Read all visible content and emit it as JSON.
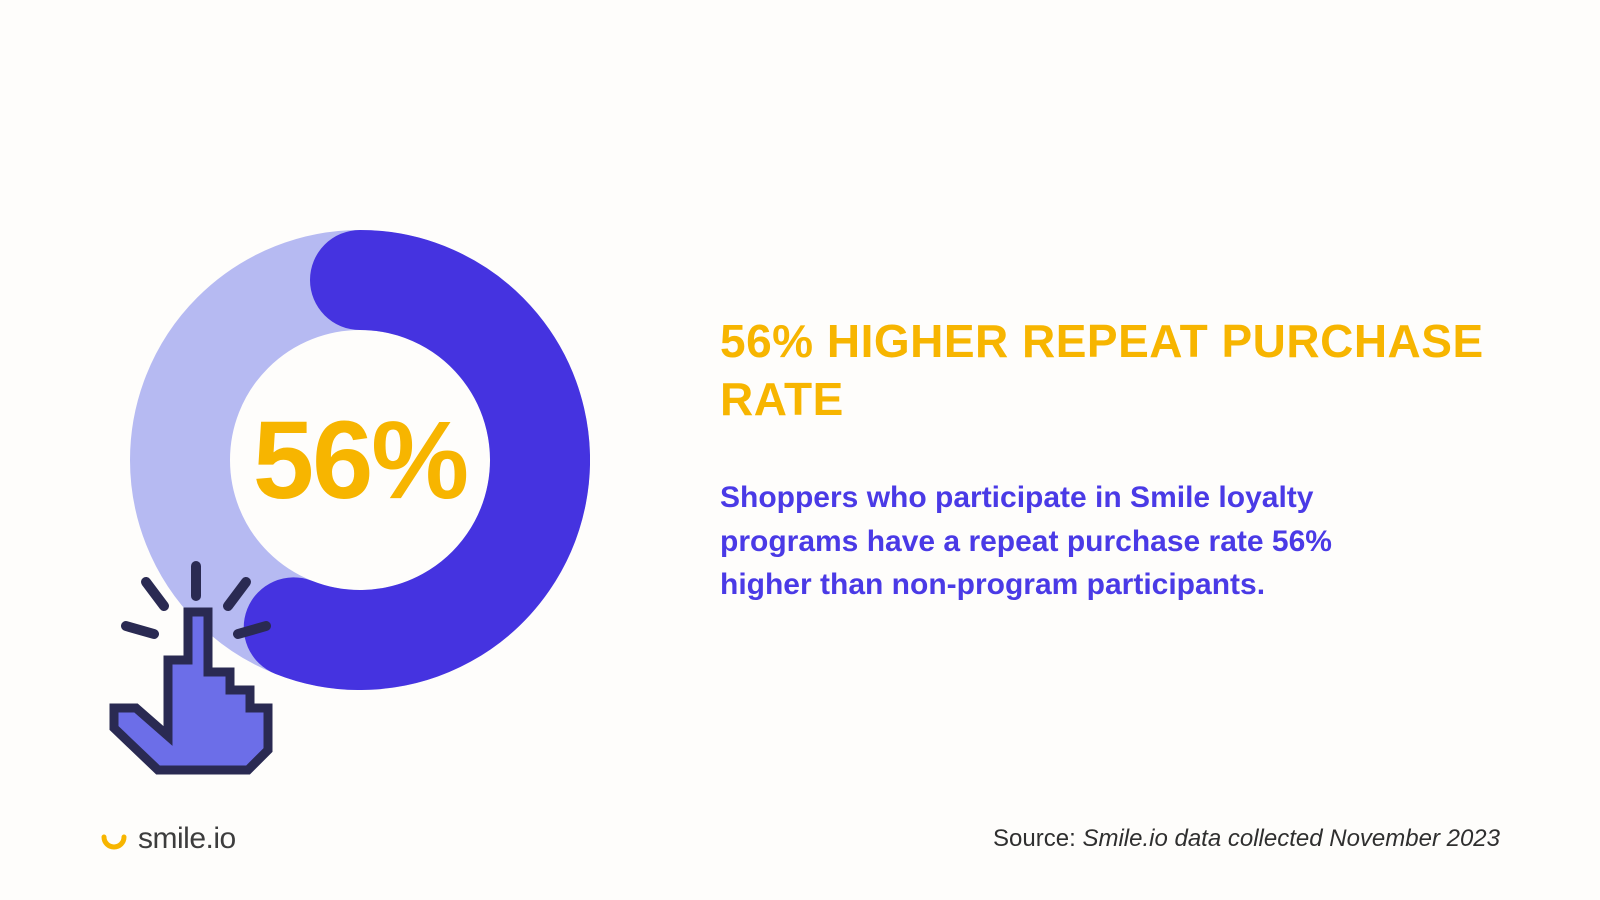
{
  "colors": {
    "background": "#fefdfb",
    "accent_yellow": "#f7b500",
    "accent_blue": "#4533e0",
    "light_blue": "#b6baf2",
    "body_text": "#4a3ae6",
    "logo_text": "#3d3d3d",
    "source_text": "#2f2f2f",
    "cursor_fill": "#6c6ee8",
    "cursor_stroke": "#2a2a52"
  },
  "chart": {
    "type": "donut",
    "value_percent": 56,
    "center_label": "56%",
    "center_fontsize": 110,
    "center_color": "#f7b500",
    "ring_thickness": 100,
    "outer_radius": 230,
    "track_color": "#b6baf2",
    "progress_color": "#4533e0",
    "start_angle_deg": -90,
    "rounded_caps": true
  },
  "headline": {
    "text": "56% HIGHER REPEAT PURCHASE RATE",
    "fontsize": 46,
    "color": "#f7b500"
  },
  "body": {
    "text": "Shoppers who participate in Smile loyalty programs have a repeat purchase rate 56% higher than non-program participants.",
    "fontsize": 30,
    "color": "#4a3ae6"
  },
  "logo": {
    "text": "smile.io",
    "text_color": "#3d3d3d",
    "mark_color": "#f7b500"
  },
  "source": {
    "prefix": "Source: ",
    "text": "Smile.io data collected November 2023",
    "color": "#2f2f2f"
  }
}
